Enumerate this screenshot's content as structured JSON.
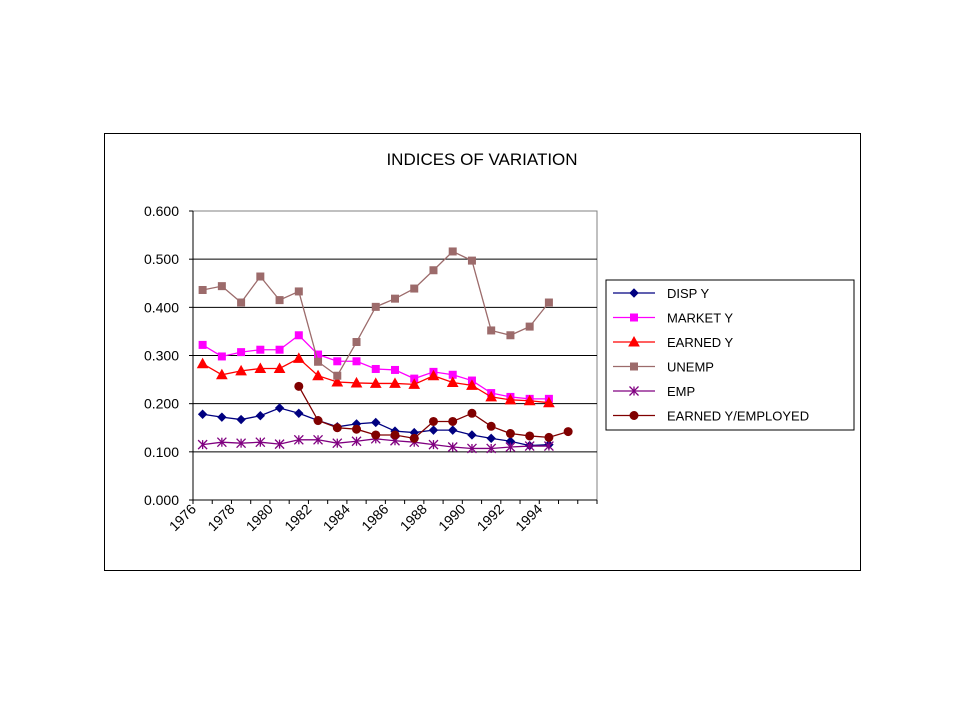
{
  "chart_data": {
    "type": "line",
    "title": "INDICES OF VARIATION",
    "xlabel": "",
    "ylabel": "",
    "ylim": [
      0,
      0.6
    ],
    "yticks": [
      "0.000",
      "0.100",
      "0.200",
      "0.300",
      "0.400",
      "0.500",
      "0.600"
    ],
    "xtick_labels": [
      "1976",
      "1978",
      "1980",
      "1982",
      "1984",
      "1986",
      "1988",
      "1990",
      "1992",
      "1994"
    ],
    "categories": [
      1976,
      1977,
      1978,
      1979,
      1980,
      1981,
      1982,
      1983,
      1984,
      1985,
      1986,
      1987,
      1988,
      1989,
      1990,
      1991,
      1992,
      1993,
      1994,
      1995,
      1996
    ],
    "grid": true,
    "legend_position": "right",
    "series": [
      {
        "name": "DISP Y",
        "color": "#000080",
        "marker": "diamond",
        "values": [
          0.178,
          0.172,
          0.167,
          0.175,
          0.191,
          0.18,
          0.165,
          0.152,
          0.158,
          0.161,
          0.143,
          0.14,
          0.145,
          0.145,
          0.135,
          0.128,
          0.122,
          0.113,
          0.115,
          null,
          null
        ]
      },
      {
        "name": "MARKET Y",
        "color": "#ff00ff",
        "marker": "square",
        "values": [
          0.322,
          0.298,
          0.307,
          0.312,
          0.312,
          0.342,
          0.302,
          0.288,
          0.288,
          0.272,
          0.27,
          0.252,
          0.266,
          0.26,
          0.248,
          0.222,
          0.214,
          0.21,
          0.21,
          null,
          null
        ]
      },
      {
        "name": "EARNED Y",
        "color": "#ff0000",
        "marker": "triangle",
        "values": [
          0.283,
          0.26,
          0.268,
          0.273,
          0.273,
          0.294,
          0.258,
          0.245,
          0.243,
          0.242,
          0.242,
          0.24,
          0.258,
          0.244,
          0.238,
          0.214,
          0.208,
          0.206,
          0.202,
          null,
          null
        ]
      },
      {
        "name": "UNEMP",
        "color": "#9c6b6b",
        "marker": "square",
        "values": [
          0.436,
          0.444,
          0.41,
          0.464,
          0.415,
          0.433,
          0.287,
          0.258,
          0.328,
          0.401,
          0.418,
          0.439,
          0.477,
          0.516,
          0.497,
          0.352,
          0.342,
          0.36,
          0.41,
          null,
          null
        ]
      },
      {
        "name": "EMP",
        "color": "#800080",
        "marker": "asterisk",
        "values": [
          0.115,
          0.12,
          0.118,
          0.12,
          0.116,
          0.125,
          0.125,
          0.118,
          0.122,
          0.127,
          0.123,
          0.12,
          0.115,
          0.11,
          0.107,
          0.107,
          0.11,
          0.112,
          0.112,
          null,
          null
        ]
      },
      {
        "name": "EARNED Y/EMPLOYED",
        "color": "#800000",
        "marker": "circle",
        "values": [
          null,
          null,
          null,
          null,
          null,
          0.236,
          0.165,
          0.15,
          0.147,
          0.135,
          0.135,
          0.128,
          0.163,
          0.163,
          0.18,
          0.153,
          0.138,
          0.133,
          0.13,
          0.142,
          null
        ]
      }
    ]
  }
}
